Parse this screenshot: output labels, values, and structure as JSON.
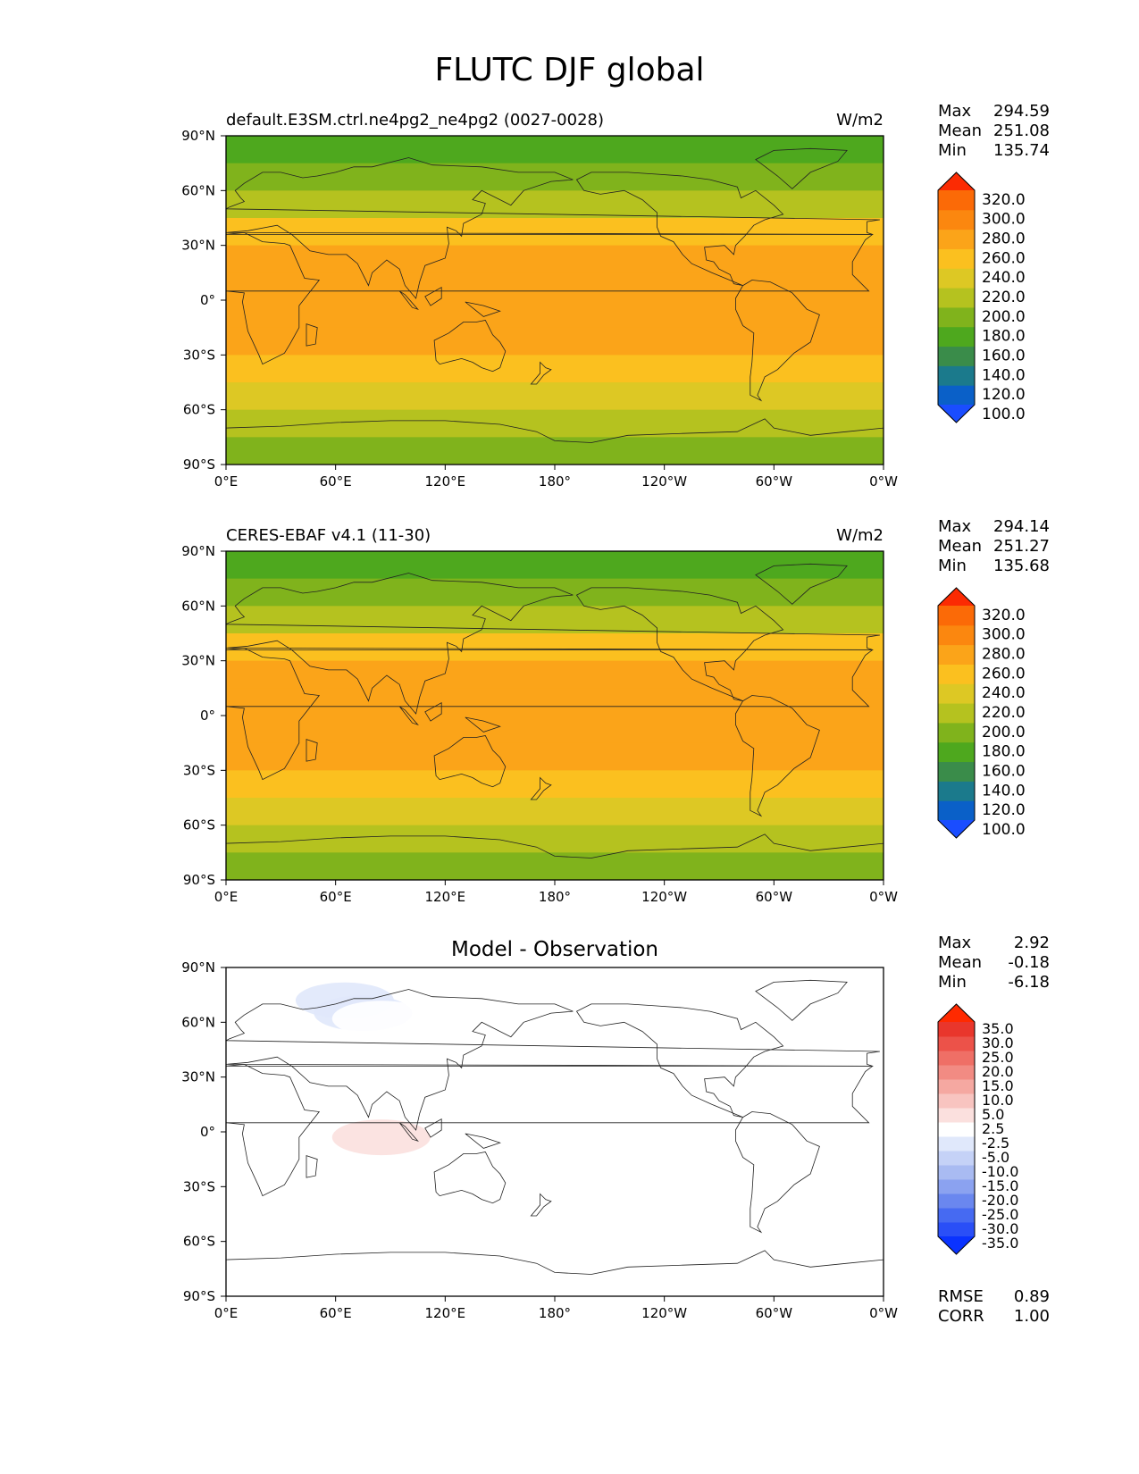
{
  "title": "FLUTC DJF global",
  "chart_data": [
    {
      "type": "heatmap",
      "title": "default.E3SM.ctrl.ne4pg2_ne4pg2 (0027-0028)",
      "units": "W/m2",
      "stats": [
        [
          "Max",
          "294.59"
        ],
        [
          "Mean",
          "251.08"
        ],
        [
          "Min",
          "135.74"
        ]
      ],
      "x_ticks": [
        "0°E",
        "60°E",
        "120°E",
        "180°",
        "120°W",
        "60°W",
        "0°W"
      ],
      "y_ticks": [
        "90°N",
        "60°N",
        "30°N",
        "0°",
        "30°S",
        "60°S",
        "90°S"
      ],
      "xlim": [
        0,
        360
      ],
      "ylim": [
        -90,
        90
      ],
      "colorbar": {
        "levels": [
          100,
          120,
          140,
          160,
          180,
          200,
          220,
          240,
          260,
          280,
          300,
          320
        ],
        "labels": [
          "320.0",
          "300.0",
          "280.0",
          "260.0",
          "240.0",
          "220.0",
          "200.0",
          "180.0",
          "160.0",
          "140.0",
          "120.0",
          "100.0"
        ],
        "colors": [
          "#1a4dff",
          "#0a60c8",
          "#1b7a8c",
          "#3a8c4a",
          "#4ea81e",
          "#80b31c",
          "#b5c21f",
          "#ddc824",
          "#fbc01f",
          "#fba419",
          "#fb870f",
          "#fb6a07",
          "#fb2b03"
        ]
      },
      "zonal_means": [
        {
          "lat": 90,
          "value": 155
        },
        {
          "lat": 75,
          "value": 165
        },
        {
          "lat": 60,
          "value": 195
        },
        {
          "lat": 45,
          "value": 225
        },
        {
          "lat": 30,
          "value": 262
        },
        {
          "lat": 15,
          "value": 275
        },
        {
          "lat": 0,
          "value": 272
        },
        {
          "lat": -15,
          "value": 273
        },
        {
          "lat": -30,
          "value": 268
        },
        {
          "lat": -45,
          "value": 240
        },
        {
          "lat": -60,
          "value": 215
        },
        {
          "lat": -75,
          "value": 195
        },
        {
          "lat": -90,
          "value": 180
        }
      ]
    },
    {
      "type": "heatmap",
      "title": "CERES-EBAF v4.1 (11-30)",
      "units": "W/m2",
      "stats": [
        [
          "Max",
          "294.14"
        ],
        [
          "Mean",
          "251.27"
        ],
        [
          "Min",
          "135.68"
        ]
      ],
      "x_ticks": [
        "0°E",
        "60°E",
        "120°E",
        "180°",
        "120°W",
        "60°W",
        "0°W"
      ],
      "y_ticks": [
        "90°N",
        "60°N",
        "30°N",
        "0°",
        "30°S",
        "60°S",
        "90°S"
      ],
      "xlim": [
        0,
        360
      ],
      "ylim": [
        -90,
        90
      ],
      "colorbar": {
        "levels": [
          100,
          120,
          140,
          160,
          180,
          200,
          220,
          240,
          260,
          280,
          300,
          320
        ],
        "labels": [
          "320.0",
          "300.0",
          "280.0",
          "260.0",
          "240.0",
          "220.0",
          "200.0",
          "180.0",
          "160.0",
          "140.0",
          "120.0",
          "100.0"
        ],
        "colors": [
          "#1a4dff",
          "#0a60c8",
          "#1b7a8c",
          "#3a8c4a",
          "#4ea81e",
          "#80b31c",
          "#b5c21f",
          "#ddc824",
          "#fbc01f",
          "#fba419",
          "#fb870f",
          "#fb6a07",
          "#fb2b03"
        ]
      },
      "zonal_means": [
        {
          "lat": 90,
          "value": 155
        },
        {
          "lat": 75,
          "value": 165
        },
        {
          "lat": 60,
          "value": 195
        },
        {
          "lat": 45,
          "value": 225
        },
        {
          "lat": 30,
          "value": 262
        },
        {
          "lat": 15,
          "value": 275
        },
        {
          "lat": 0,
          "value": 272
        },
        {
          "lat": -15,
          "value": 273
        },
        {
          "lat": -30,
          "value": 268
        },
        {
          "lat": -45,
          "value": 240
        },
        {
          "lat": -60,
          "value": 215
        },
        {
          "lat": -75,
          "value": 195
        },
        {
          "lat": -90,
          "value": 180
        }
      ]
    },
    {
      "type": "heatmap",
      "title": "Model - Observation",
      "units": "",
      "stats": [
        [
          "Max",
          "2.92"
        ],
        [
          "Mean",
          "-0.18"
        ],
        [
          "Min",
          "-6.18"
        ]
      ],
      "extra_stats": [
        [
          "RMSE",
          "0.89"
        ],
        [
          "CORR",
          "1.00"
        ]
      ],
      "x_ticks": [
        "0°E",
        "60°E",
        "120°E",
        "180°",
        "120°W",
        "60°W",
        "0°W"
      ],
      "y_ticks": [
        "90°N",
        "60°N",
        "30°N",
        "0°",
        "30°S",
        "60°S",
        "90°S"
      ],
      "xlim": [
        0,
        360
      ],
      "ylim": [
        -90,
        90
      ],
      "colorbar": {
        "levels": [
          -35,
          -30,
          -25,
          -20,
          -15,
          -10,
          -5,
          -2.5,
          2.5,
          5,
          10,
          15,
          20,
          25,
          30,
          35
        ],
        "labels": [
          "35.0",
          "30.0",
          "25.0",
          "20.0",
          "15.0",
          "10.0",
          "5.0",
          "2.5",
          "-2.5",
          "-5.0",
          "-10.0",
          "-15.0",
          "-20.0",
          "-25.0",
          "-30.0",
          "-35.0"
        ],
        "colors": [
          "#0a33ff",
          "#2a4ff7",
          "#466af2",
          "#6a87ef",
          "#8ba2f0",
          "#a9bbf2",
          "#c5d2f7",
          "#e0e8fb",
          "#ffffff",
          "#fbe0de",
          "#f8c4c0",
          "#f5a8a1",
          "#f28b83",
          "#ef6f66",
          "#ec5249",
          "#e9362c",
          "#ff2a00"
        ]
      },
      "anomalies": [
        {
          "lon": 75,
          "lat": 65,
          "value": -4
        },
        {
          "lon": 65,
          "lat": 72,
          "value": -3
        },
        {
          "lon": 85,
          "lat": 62,
          "value": -2.5
        },
        {
          "lon": 85,
          "lat": -3,
          "value": 2.9
        }
      ]
    }
  ]
}
